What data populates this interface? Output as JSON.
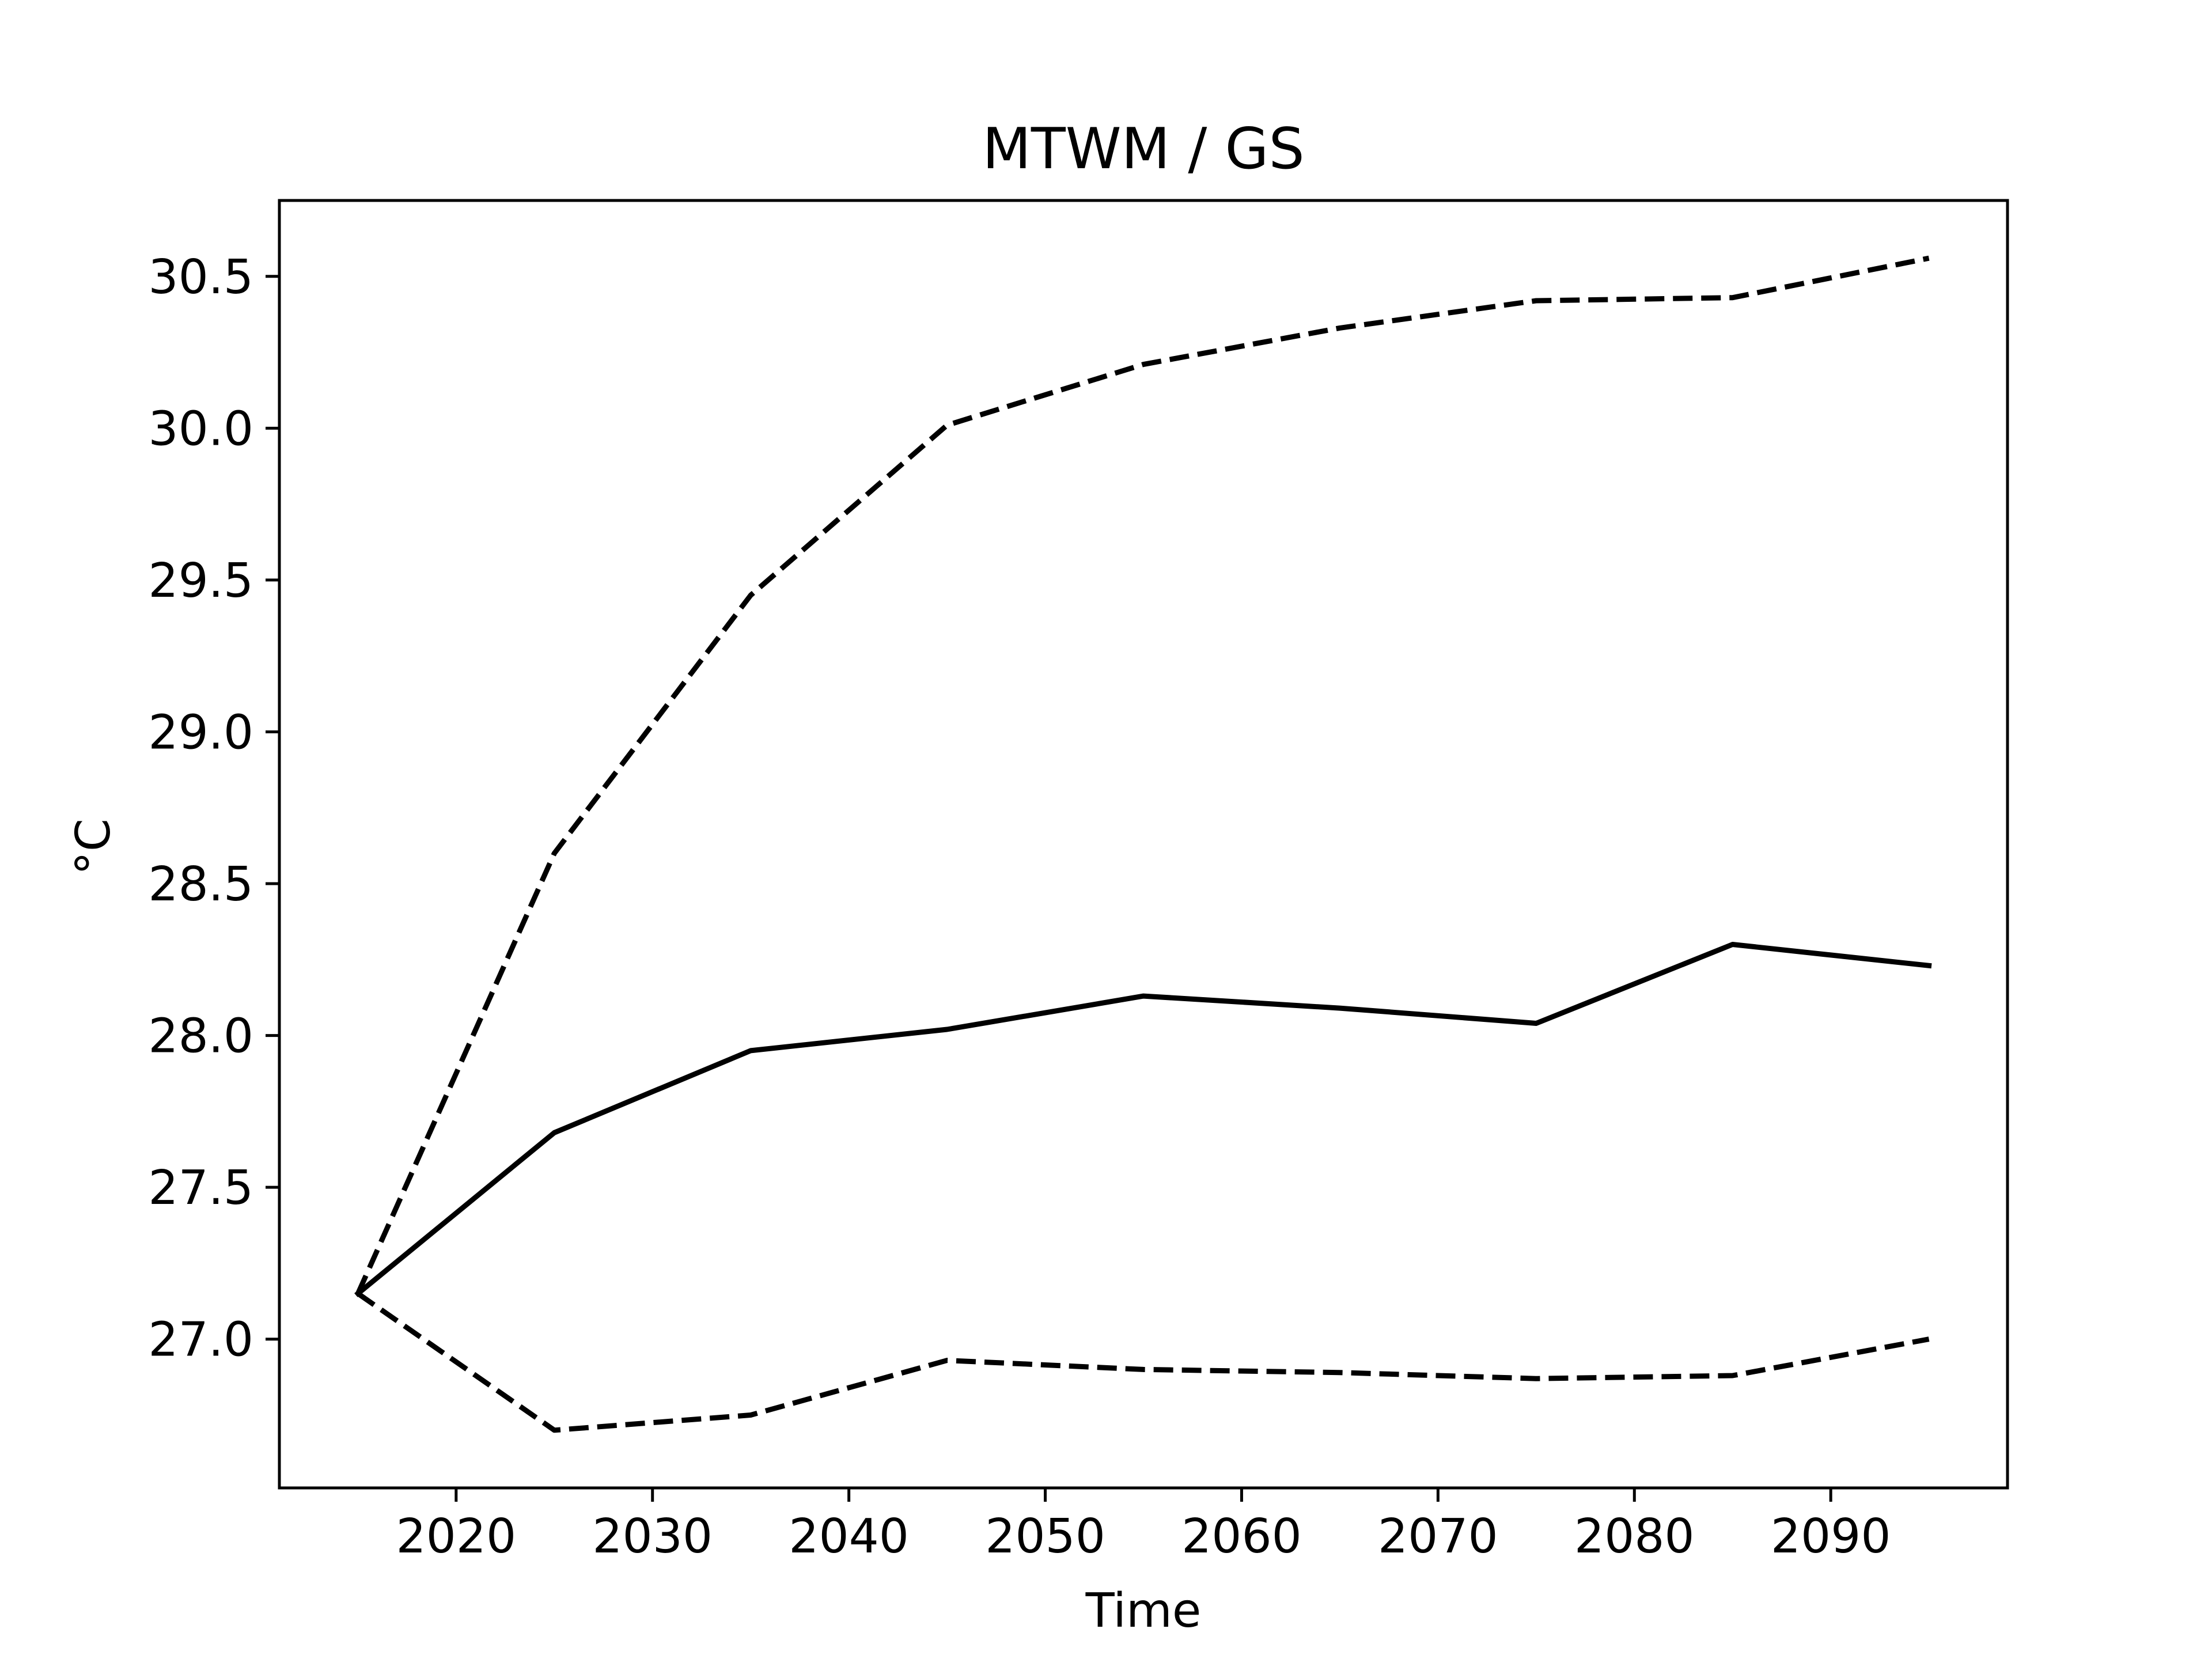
{
  "chart_data": {
    "type": "line",
    "title": "MTWM / GS",
    "xlabel": "Time",
    "ylabel": "°C",
    "x": [
      2015,
      2025,
      2035,
      2045,
      2055,
      2065,
      2075,
      2085,
      2095
    ],
    "xlim": [
      2011,
      2099
    ],
    "ylim": [
      26.51,
      30.75
    ],
    "xticks": [
      2020,
      2030,
      2040,
      2050,
      2060,
      2070,
      2080,
      2090
    ],
    "xtick_labels": [
      "2020",
      "2030",
      "2040",
      "2050",
      "2060",
      "2070",
      "2080",
      "2090"
    ],
    "yticks": [
      27.0,
      27.5,
      28.0,
      28.5,
      29.0,
      29.5,
      30.0,
      30.5
    ],
    "ytick_labels": [
      "27.0",
      "27.5",
      "28.0",
      "28.5",
      "29.0",
      "29.5",
      "30.0",
      "30.5"
    ],
    "grid": false,
    "series": [
      {
        "style": "solid",
        "color": "#000000",
        "values": [
          27.15,
          27.68,
          27.95,
          28.02,
          28.13,
          28.09,
          28.04,
          28.3,
          28.23
        ]
      },
      {
        "style": "dashed",
        "color": "#000000",
        "values": [
          27.15,
          28.6,
          29.45,
          30.01,
          30.21,
          30.33,
          30.42,
          30.43,
          30.56
        ]
      },
      {
        "style": "dashed",
        "color": "#000000",
        "values": [
          27.15,
          26.7,
          26.75,
          26.93,
          26.9,
          26.89,
          26.87,
          26.88,
          27.0
        ]
      }
    ]
  }
}
